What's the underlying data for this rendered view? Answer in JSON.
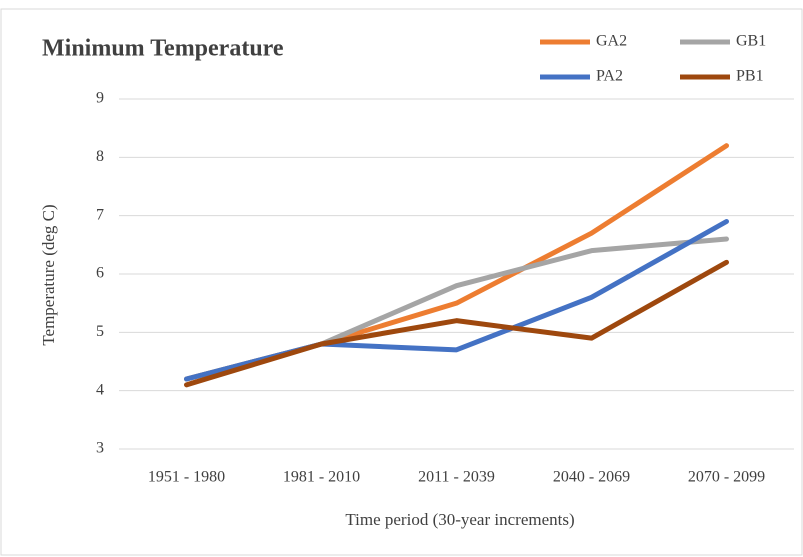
{
  "chart_data": {
    "type": "line",
    "title": "Minimum Temperature",
    "x_label": "Time period (30-year increments)",
    "y_label": "Temperature (deg C)",
    "categories": [
      "1951 - 1980",
      "1981 - 2010",
      "2011 - 2039",
      "2040 - 2069",
      "2070 - 2099"
    ],
    "series": [
      {
        "name": "GA2",
        "color": "#ed7d31",
        "values": [
          4.2,
          4.8,
          5.5,
          6.7,
          8.2
        ]
      },
      {
        "name": "GB1",
        "color": "#a5a5a5",
        "values": [
          4.2,
          4.8,
          5.8,
          6.4,
          6.6
        ]
      },
      {
        "name": "PA2",
        "color": "#4472c4",
        "values": [
          4.2,
          4.8,
          4.7,
          5.6,
          6.9
        ]
      },
      {
        "name": "PB1",
        "color": "#9e480e",
        "values": [
          4.1,
          4.8,
          5.2,
          4.9,
          6.2
        ]
      }
    ],
    "ylim": [
      3,
      9
    ],
    "yticks": [
      3,
      4,
      5,
      6,
      7,
      8,
      9
    ],
    "grid": true
  }
}
